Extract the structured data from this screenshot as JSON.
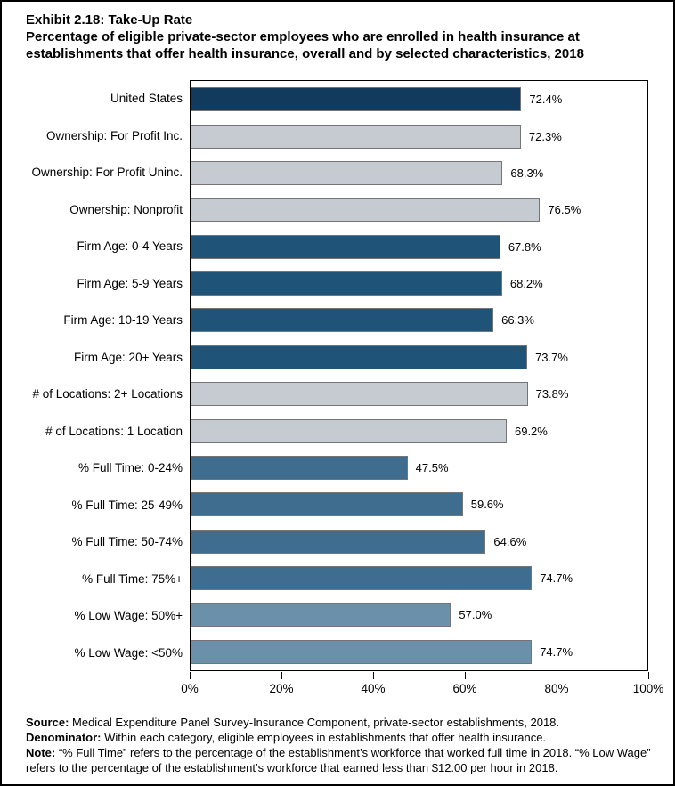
{
  "header": {
    "title": "Exhibit 2.18: Take-Up Rate",
    "subtitle": "Percentage of eligible private-sector employees who are enrolled in health insurance at establishments that offer health insurance, overall and by selected characteristics, 2018"
  },
  "colors": {
    "united_states": "#123A5C",
    "ownership_gray": "#C5CBD1",
    "firm_age_blue": "#1F5478",
    "full_time_blue": "#3F6D8F",
    "low_wage_steel": "#6B90AA",
    "bar_border": "#757575",
    "plot_border": "#000000"
  },
  "chart_data": {
    "type": "bar",
    "orientation": "horizontal",
    "title": "Exhibit 2.18: Take-Up Rate",
    "xlabel": "",
    "ylabel": "",
    "xlim": [
      0,
      100
    ],
    "grid": false,
    "x_ticks": [
      "0%",
      "20%",
      "40%",
      "60%",
      "80%",
      "100%"
    ],
    "x_tick_values": [
      0,
      20,
      40,
      60,
      80,
      100
    ],
    "categories": [
      "United States",
      "Ownership: For Profit Inc.",
      "Ownership: For Profit Uninc.",
      "Ownership: Nonprofit",
      "Firm Age: 0-4 Years",
      "Firm Age: 5-9 Years",
      "Firm Age: 10-19 Years",
      "Firm Age: 20+ Years",
      "# of Locations: 2+ Locations",
      "# of Locations: 1 Location",
      "% Full Time: 0-24%",
      "% Full Time: 25-49%",
      "% Full Time: 50-74%",
      "% Full Time: 75%+",
      "% Low Wage: 50%+",
      "% Low Wage: <50%"
    ],
    "values": [
      72.4,
      72.3,
      68.3,
      76.5,
      67.8,
      68.2,
      66.3,
      73.7,
      73.8,
      69.2,
      47.5,
      59.6,
      64.6,
      74.7,
      57.0,
      74.7
    ],
    "value_labels": [
      "72.4%",
      "72.3%",
      "68.3%",
      "76.5%",
      "67.8%",
      "68.2%",
      "66.3%",
      "73.7%",
      "73.8%",
      "69.2%",
      "47.5%",
      "59.6%",
      "64.6%",
      "74.7%",
      "57.0%",
      "74.7%"
    ],
    "bar_colors": [
      "#123A5C",
      "#C5CBD1",
      "#C5CBD1",
      "#C5CBD1",
      "#1F5478",
      "#1F5478",
      "#1F5478",
      "#1F5478",
      "#C5CBD1",
      "#C5CBD1",
      "#3F6D8F",
      "#3F6D8F",
      "#3F6D8F",
      "#3F6D8F",
      "#6B90AA",
      "#6B90AA"
    ]
  },
  "footer": {
    "source_label": "Source:",
    "source_text": " Medical Expenditure Panel Survey-Insurance Component, private-sector establishments, 2018.",
    "denominator_label": "Denominator:",
    "denominator_text": " Within each category, eligible employees in establishments that offer health insurance.",
    "note_label": "Note:",
    "note_text": " “% Full Time” refers to the percentage of the establishment’s workforce that worked full time in 2018. “% Low Wage” refers to the percentage of the establishment’s workforce that earned less than $12.00 per hour in 2018."
  }
}
